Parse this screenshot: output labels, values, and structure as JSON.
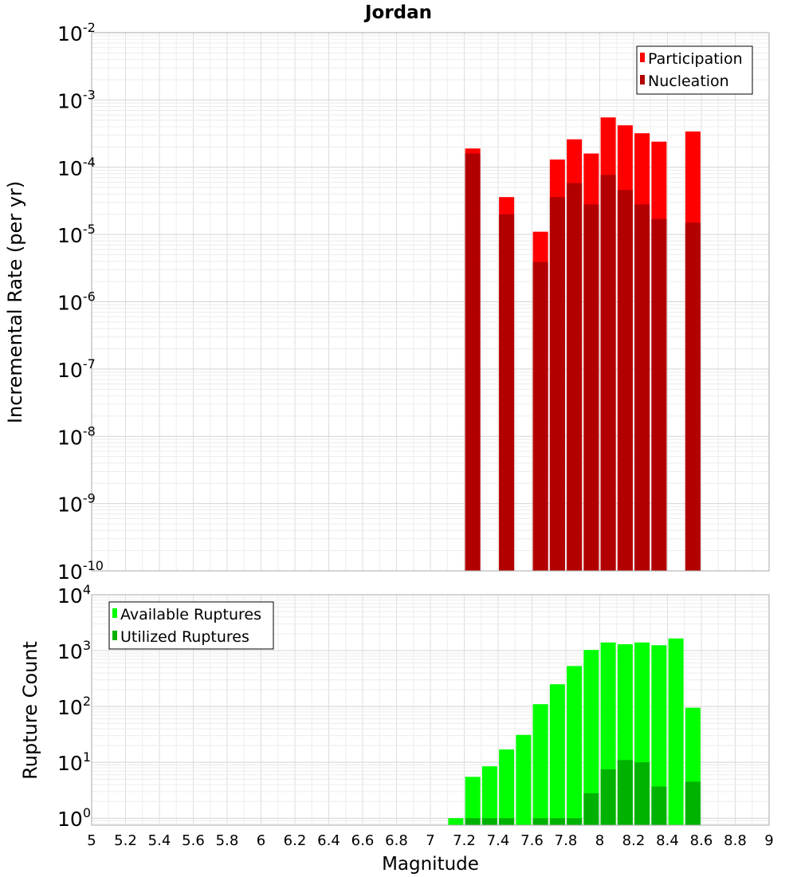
{
  "chart_data": [
    {
      "type": "bar",
      "title": "Jordan",
      "xlabel": "",
      "ylabel": "Incremental Rate (per yr)",
      "yscale": "log",
      "ylim": [
        1e-10,
        0.01
      ],
      "xlim": [
        5,
        9
      ],
      "grid": true,
      "legend": "top-right",
      "y_tick_labels": [
        {
          "base": "10",
          "exp": "-10"
        },
        {
          "base": "10",
          "exp": "-9"
        },
        {
          "base": "10",
          "exp": "-8"
        },
        {
          "base": "10",
          "exp": "-7"
        },
        {
          "base": "10",
          "exp": "-6"
        },
        {
          "base": "10",
          "exp": "-5"
        },
        {
          "base": "10",
          "exp": "-4"
        },
        {
          "base": "10",
          "exp": "-3"
        },
        {
          "base": "10",
          "exp": "-2"
        }
      ],
      "series": [
        {
          "name": "Participation",
          "color": "#ff0000",
          "points": [
            {
              "x": 7.25,
              "y": 0.00019
            },
            {
              "x": 7.45,
              "y": 3.6e-05
            },
            {
              "x": 7.65,
              "y": 1.1e-05
            },
            {
              "x": 7.75,
              "y": 0.00013
            },
            {
              "x": 7.85,
              "y": 0.00026
            },
            {
              "x": 7.95,
              "y": 0.00016
            },
            {
              "x": 8.05,
              "y": 0.00055
            },
            {
              "x": 8.15,
              "y": 0.00042
            },
            {
              "x": 8.25,
              "y": 0.00032
            },
            {
              "x": 8.35,
              "y": 0.00024
            },
            {
              "x": 8.55,
              "y": 0.00034
            }
          ]
        },
        {
          "name": "Nucleation",
          "color": "#b20000",
          "points": [
            {
              "x": 7.25,
              "y": 0.00016
            },
            {
              "x": 7.45,
              "y": 2e-05
            },
            {
              "x": 7.65,
              "y": 3.9e-06
            },
            {
              "x": 7.75,
              "y": 3.6e-05
            },
            {
              "x": 7.85,
              "y": 5.8e-05
            },
            {
              "x": 7.95,
              "y": 2.8e-05
            },
            {
              "x": 8.05,
              "y": 7.7e-05
            },
            {
              "x": 8.15,
              "y": 4.6e-05
            },
            {
              "x": 8.25,
              "y": 2.8e-05
            },
            {
              "x": 8.35,
              "y": 1.7e-05
            },
            {
              "x": 8.55,
              "y": 1.5e-05
            }
          ]
        }
      ]
    },
    {
      "type": "bar",
      "title": "",
      "xlabel": "Magnitude",
      "ylabel": "Rupture Count",
      "yscale": "log",
      "ylim": [
        0.75,
        10000
      ],
      "xlim": [
        5,
        9
      ],
      "grid": true,
      "legend": "top-left",
      "x_ticks": [
        "5",
        "5.2",
        "5.4",
        "5.6",
        "5.8",
        "6",
        "6.2",
        "6.4",
        "6.6",
        "6.8",
        "7",
        "7.2",
        "7.4",
        "7.6",
        "7.8",
        "8",
        "8.2",
        "8.4",
        "8.6",
        "8.8",
        "9"
      ],
      "y_tick_labels": [
        {
          "base": "10",
          "exp": "0"
        },
        {
          "base": "10",
          "exp": "1"
        },
        {
          "base": "10",
          "exp": "2"
        },
        {
          "base": "10",
          "exp": "3"
        },
        {
          "base": "10",
          "exp": "4"
        }
      ],
      "series": [
        {
          "name": "Available Ruptures",
          "color": "#00ff00",
          "points": [
            {
              "x": 7.15,
              "y": 1
            },
            {
              "x": 7.25,
              "y": 5.5
            },
            {
              "x": 7.35,
              "y": 8.5
            },
            {
              "x": 7.45,
              "y": 17
            },
            {
              "x": 7.55,
              "y": 31
            },
            {
              "x": 7.65,
              "y": 110
            },
            {
              "x": 7.75,
              "y": 250
            },
            {
              "x": 7.85,
              "y": 530
            },
            {
              "x": 7.95,
              "y": 1030
            },
            {
              "x": 8.05,
              "y": 1400
            },
            {
              "x": 8.15,
              "y": 1300
            },
            {
              "x": 8.25,
              "y": 1400
            },
            {
              "x": 8.35,
              "y": 1250
            },
            {
              "x": 8.45,
              "y": 1650
            },
            {
              "x": 8.55,
              "y": 95
            }
          ]
        },
        {
          "name": "Utilized Ruptures",
          "color": "#00b200",
          "points": [
            {
              "x": 7.25,
              "y": 1
            },
            {
              "x": 7.35,
              "y": 1
            },
            {
              "x": 7.45,
              "y": 1
            },
            {
              "x": 7.65,
              "y": 1
            },
            {
              "x": 7.75,
              "y": 1
            },
            {
              "x": 7.85,
              "y": 1
            },
            {
              "x": 7.95,
              "y": 2.8
            },
            {
              "x": 8.05,
              "y": 7.5
            },
            {
              "x": 8.15,
              "y": 11
            },
            {
              "x": 8.25,
              "y": 10
            },
            {
              "x": 8.35,
              "y": 3.7
            },
            {
              "x": 8.55,
              "y": 4.5
            }
          ]
        }
      ]
    }
  ]
}
